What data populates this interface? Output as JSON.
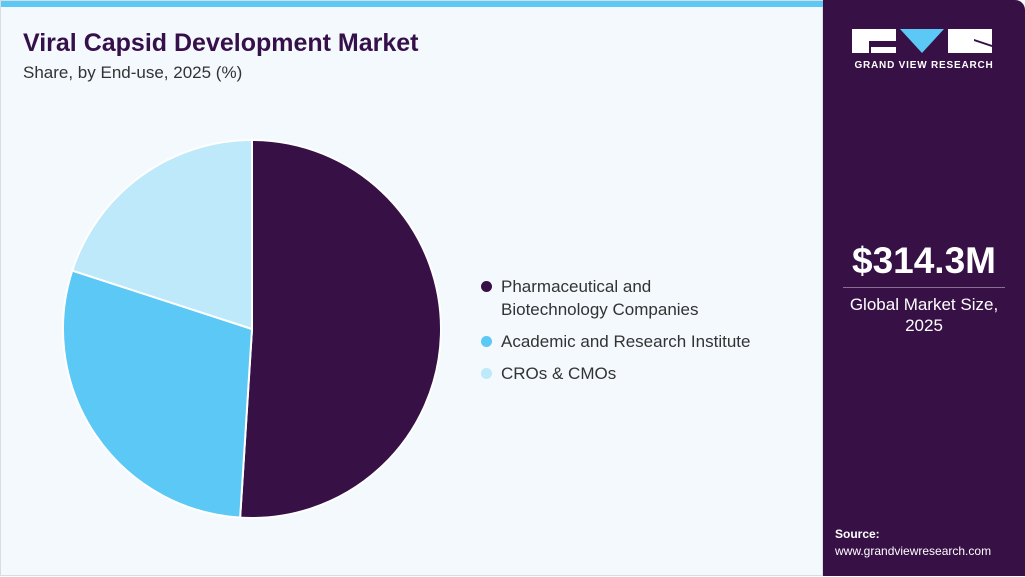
{
  "chart_data": {
    "type": "pie",
    "title": "Viral Capsid Development Market",
    "subtitle": "Share, by End-use, 2025 (%)",
    "categories": [
      "Pharmaceutical and Biotechnology Companies",
      "Academic and Research Institute",
      "CROs & CMOs"
    ],
    "legend_lines": [
      [
        "Pharmaceutical and",
        "Biotechnology Companies"
      ],
      [
        "Academic and Research Institute"
      ],
      [
        "CROs & CMOs"
      ]
    ],
    "values": [
      51,
      29,
      20
    ],
    "colors": [
      "#371045",
      "#5bc8f5",
      "#bde9fa"
    ],
    "legend_position": "right"
  },
  "sidebar": {
    "brand": "GRAND VIEW RESEARCH",
    "market_size": "$314.3M",
    "market_label_line1": "Global Market Size,",
    "market_label_line2": "2025",
    "source_label": "Source:",
    "source_url": "www.grandviewresearch.com"
  },
  "colors": {
    "accent": "#5bc8f5",
    "brand": "#371045",
    "background": "#f3f9fc"
  }
}
